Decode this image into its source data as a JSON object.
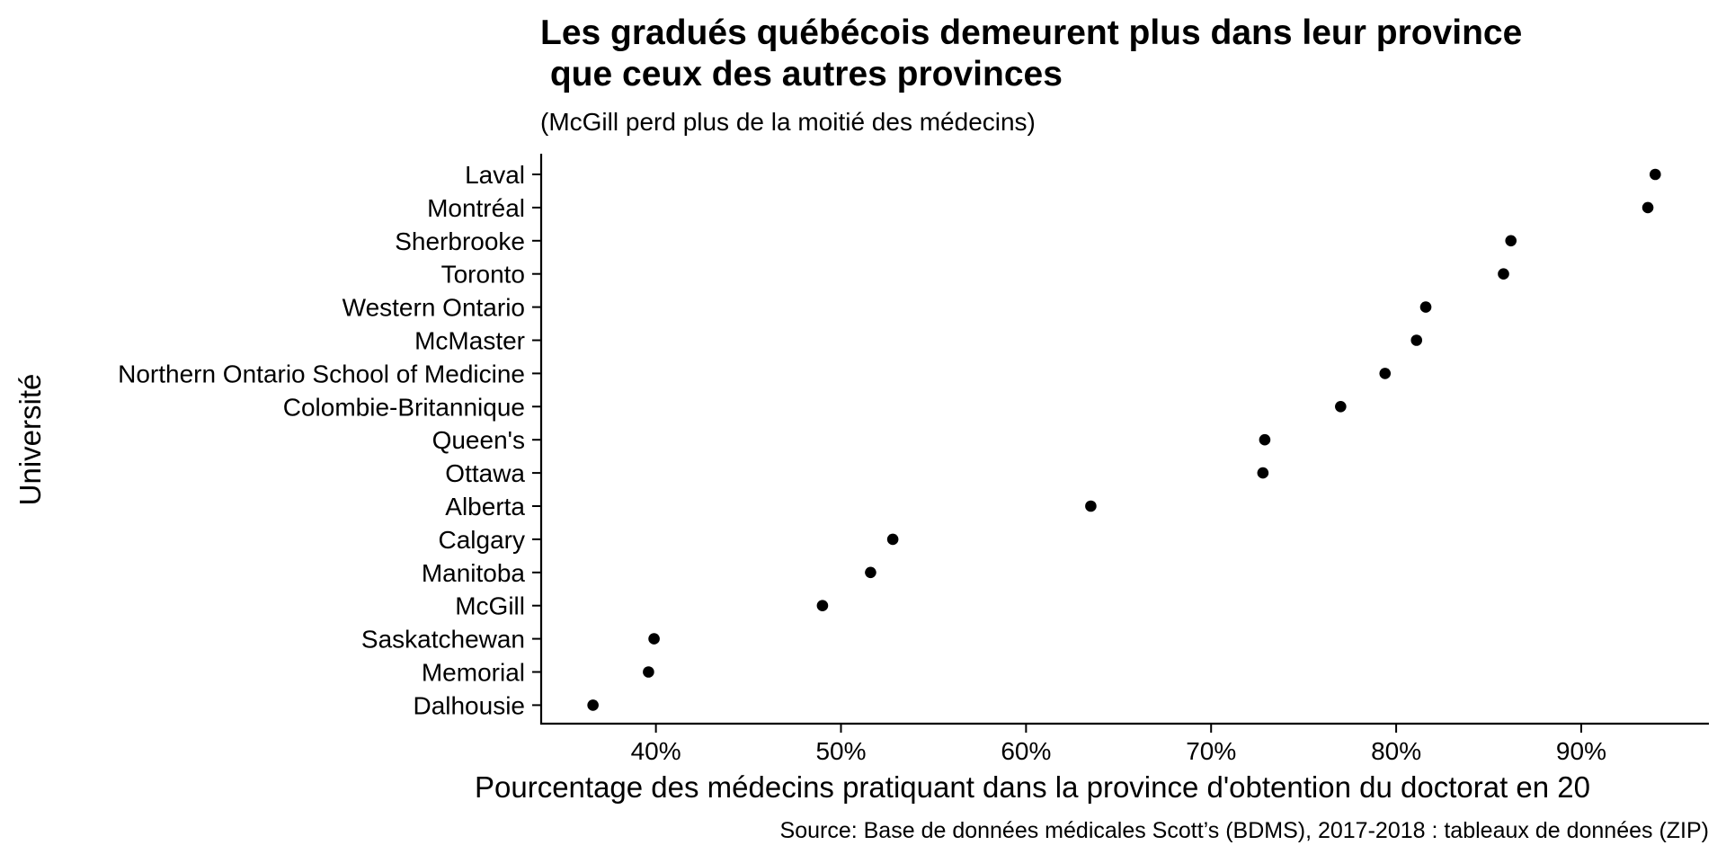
{
  "chart_data": {
    "type": "scatter",
    "title_lines": [
      "Les gradués québécois demeurent plus dans leur province",
      " que ceux des autres provinces"
    ],
    "subtitle": "(McGill perd plus de la moitié des médecins)",
    "xlabel": "Pourcentage des médecins pratiquant dans la province d'obtention du doctorat en 20",
    "ylabel": "Université",
    "caption": "Source: Base de données médicales Scott’s (BDMS), 2017-2018 : tableaux de données (ZIP)",
    "x_ticks": [
      {
        "value": 40,
        "label": "40%"
      },
      {
        "value": 50,
        "label": "50%"
      },
      {
        "value": 60,
        "label": "60%"
      },
      {
        "value": 70,
        "label": "70%"
      },
      {
        "value": 80,
        "label": "80%"
      },
      {
        "value": 90,
        "label": "90%"
      }
    ],
    "xlim": [
      33.8,
      96.9
    ],
    "grid": false,
    "legend": "none",
    "marker_color": "#000000",
    "points": [
      {
        "category": "Laval",
        "value": 94.0
      },
      {
        "category": "Montréal",
        "value": 93.6
      },
      {
        "category": "Sherbrooke",
        "value": 86.2
      },
      {
        "category": "Toronto",
        "value": 85.8
      },
      {
        "category": "Western Ontario",
        "value": 81.6
      },
      {
        "category": "McMaster",
        "value": 81.1
      },
      {
        "category": "Northern Ontario School of Medicine",
        "value": 79.4
      },
      {
        "category": "Colombie-Britannique",
        "value": 77.0
      },
      {
        "category": "Queen's",
        "value": 72.9
      },
      {
        "category": "Ottawa",
        "value": 72.8
      },
      {
        "category": "Alberta",
        "value": 63.5
      },
      {
        "category": "Calgary",
        "value": 52.8
      },
      {
        "category": "Manitoba",
        "value": 51.6
      },
      {
        "category": "McGill",
        "value": 49.0
      },
      {
        "category": "Saskatchewan",
        "value": 39.9
      },
      {
        "category": "Memorial",
        "value": 39.6
      },
      {
        "category": "Dalhousie",
        "value": 36.6
      }
    ]
  }
}
